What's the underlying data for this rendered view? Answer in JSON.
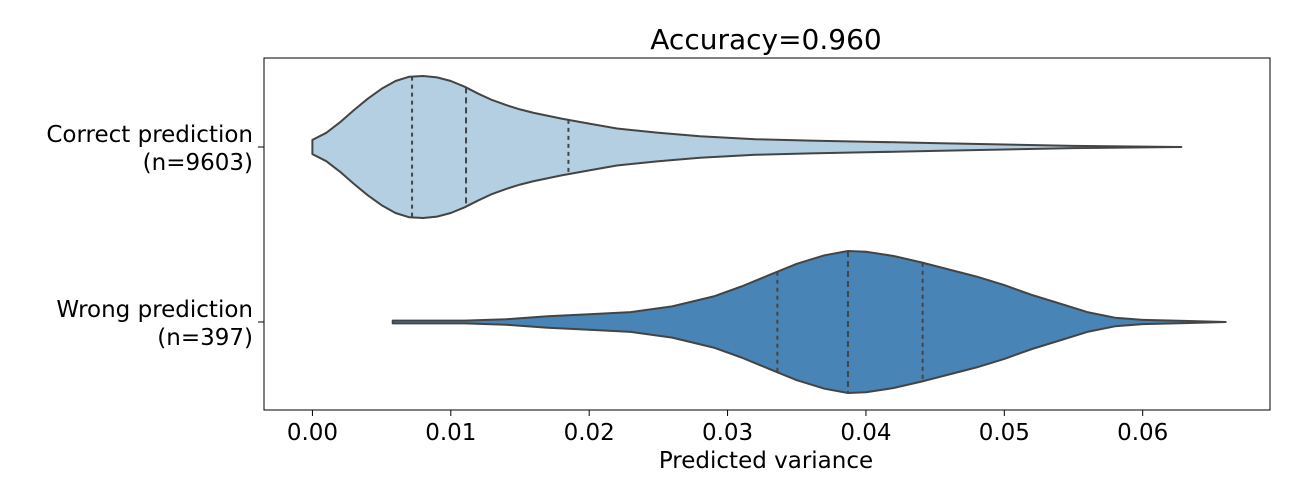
{
  "chart_data": {
    "type": "violin",
    "orientation": "horizontal",
    "title": "Accuracy=0.960",
    "xlabel": "Predicted variance",
    "ylabel": "",
    "xlim": [
      -0.0035,
      0.0692
    ],
    "xticks": [
      0.0,
      0.01,
      0.02,
      0.03,
      0.04,
      0.05,
      0.06
    ],
    "xtick_labels": [
      "0.00",
      "0.01",
      "0.02",
      "0.03",
      "0.04",
      "0.05",
      "0.06"
    ],
    "grid": false,
    "inner": "quartile",
    "categories": [
      {
        "label_line1": "Correct prediction",
        "label_line2": "(n=9603)",
        "color": "#b3cfe1",
        "min": 0.0,
        "max": 0.0628,
        "quartiles": [
          0.0072,
          0.0111,
          0.0185
        ],
        "density": [
          [
            0.0,
            0.1
          ],
          [
            0.001,
            0.2
          ],
          [
            0.002,
            0.35
          ],
          [
            0.003,
            0.52
          ],
          [
            0.004,
            0.68
          ],
          [
            0.005,
            0.82
          ],
          [
            0.006,
            0.93
          ],
          [
            0.007,
            0.99
          ],
          [
            0.008,
            1.0
          ],
          [
            0.009,
            0.98
          ],
          [
            0.01,
            0.93
          ],
          [
            0.011,
            0.85
          ],
          [
            0.012,
            0.75
          ],
          [
            0.013,
            0.66
          ],
          [
            0.014,
            0.59
          ],
          [
            0.015,
            0.53
          ],
          [
            0.016,
            0.48
          ],
          [
            0.018,
            0.4
          ],
          [
            0.02,
            0.33
          ],
          [
            0.022,
            0.26
          ],
          [
            0.025,
            0.2
          ],
          [
            0.028,
            0.15
          ],
          [
            0.032,
            0.11
          ],
          [
            0.036,
            0.09
          ],
          [
            0.04,
            0.075
          ],
          [
            0.045,
            0.055
          ],
          [
            0.05,
            0.035
          ],
          [
            0.055,
            0.015
          ],
          [
            0.0628,
            0.0
          ]
        ]
      },
      {
        "label_line1": "Wrong prediction",
        "label_line2": "(n=397)",
        "color": "#4884b6",
        "min": 0.0058,
        "max": 0.066,
        "quartiles": [
          0.0336,
          0.0387,
          0.0441
        ],
        "density": [
          [
            0.0058,
            0.02
          ],
          [
            0.008,
            0.02
          ],
          [
            0.011,
            0.02
          ],
          [
            0.014,
            0.04
          ],
          [
            0.017,
            0.08
          ],
          [
            0.02,
            0.11
          ],
          [
            0.023,
            0.14
          ],
          [
            0.026,
            0.22
          ],
          [
            0.029,
            0.36
          ],
          [
            0.031,
            0.5
          ],
          [
            0.033,
            0.66
          ],
          [
            0.035,
            0.82
          ],
          [
            0.037,
            0.94
          ],
          [
            0.0387,
            1.0
          ],
          [
            0.04,
            0.99
          ],
          [
            0.042,
            0.93
          ],
          [
            0.044,
            0.84
          ],
          [
            0.046,
            0.74
          ],
          [
            0.048,
            0.64
          ],
          [
            0.05,
            0.52
          ],
          [
            0.052,
            0.38
          ],
          [
            0.054,
            0.26
          ],
          [
            0.056,
            0.14
          ],
          [
            0.058,
            0.06
          ],
          [
            0.06,
            0.03
          ],
          [
            0.063,
            0.015
          ],
          [
            0.066,
            0.0
          ]
        ]
      }
    ]
  }
}
